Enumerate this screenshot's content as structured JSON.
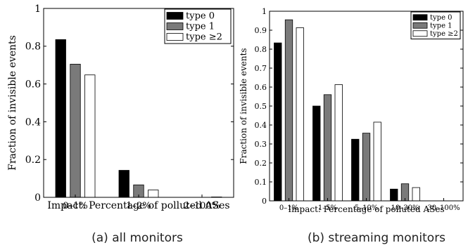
{
  "chart_data": [
    {
      "type": "bar",
      "ylabel": "Fraction of invisible events",
      "xlabel": "Impact: Percentage of polluted ASes",
      "ylim": [
        0,
        1
      ],
      "yticks": [
        "0",
        "0.2",
        "0.4",
        "0.6",
        "0.8",
        "1"
      ],
      "categories": [
        "0–1%",
        "1–2%",
        "2–100%"
      ],
      "series": [
        {
          "name": "type 0",
          "values": [
            0.835,
            0.143,
            0.0
          ],
          "color": "#000000"
        },
        {
          "name": "type 1",
          "values": [
            0.705,
            0.066,
            0.0
          ],
          "color": "#7a7a7a"
        },
        {
          "name": "type  ≥2",
          "values": [
            0.648,
            0.039,
            0.002
          ],
          "color": "#ffffff"
        }
      ],
      "legend_position": "top-right",
      "grid": false,
      "caption": "(a) all monitors"
    },
    {
      "type": "bar",
      "ylabel": "Fraction of invisible events",
      "xlabel": "Impact: Percentage of polluted ASes",
      "ylim": [
        0,
        1
      ],
      "yticks": [
        "0",
        "0.1",
        "0.2",
        "0.3",
        "0.4",
        "0.5",
        "0.6",
        "0.7",
        "0.8",
        "0.9",
        "1"
      ],
      "categories": [
        "0–1%",
        "1–5%",
        "5–10%",
        "10–30%",
        "30–100%"
      ],
      "series": [
        {
          "name": "type 0",
          "values": [
            0.833,
            0.5,
            0.325,
            0.062,
            0.0
          ],
          "color": "#000000"
        },
        {
          "name": "type 1",
          "values": [
            0.955,
            0.56,
            0.357,
            0.09,
            0.0
          ],
          "color": "#7a7a7a"
        },
        {
          "name": "type  ≥2",
          "values": [
            0.913,
            0.613,
            0.415,
            0.07,
            0.0
          ],
          "color": "#ffffff"
        }
      ],
      "legend_position": "top-right",
      "grid": false,
      "caption": "(b) streaming monitors"
    }
  ]
}
